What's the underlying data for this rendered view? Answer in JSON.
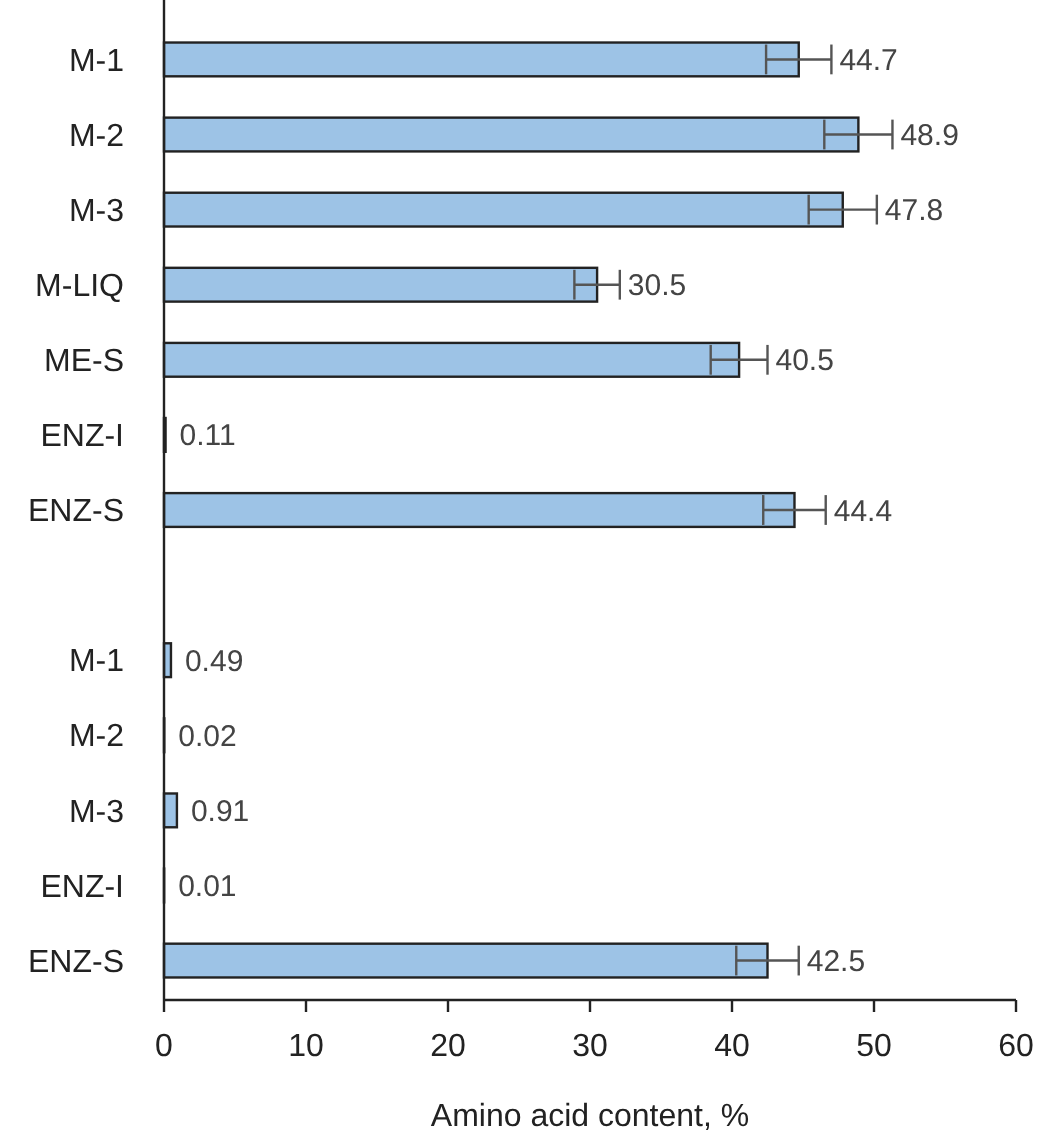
{
  "chart_data": {
    "type": "bar",
    "orientation": "horizontal",
    "xlabel": "Amino acid content, %",
    "categories": [
      "M-1",
      "M-2",
      "M-3",
      "M-LIQ",
      "ME-S",
      "ENZ-I",
      "ENZ-S",
      null,
      "M-1",
      "M-2",
      "M-3",
      "ENZ-I",
      "ENZ-S"
    ],
    "values": [
      44.7,
      48.9,
      47.8,
      30.5,
      40.5,
      0.11,
      44.4,
      null,
      0.49,
      0.02,
      0.91,
      0.01,
      42.5
    ],
    "errors": [
      2.3,
      2.4,
      2.4,
      1.6,
      2,
      null,
      2.2,
      null,
      null,
      null,
      null,
      null,
      2.2
    ],
    "color": "#9dc3e6",
    "data_labels": true,
    "xlim": [
      0,
      60
    ],
    "xticks": [
      0,
      10,
      20,
      30,
      40,
      50,
      60
    ]
  }
}
